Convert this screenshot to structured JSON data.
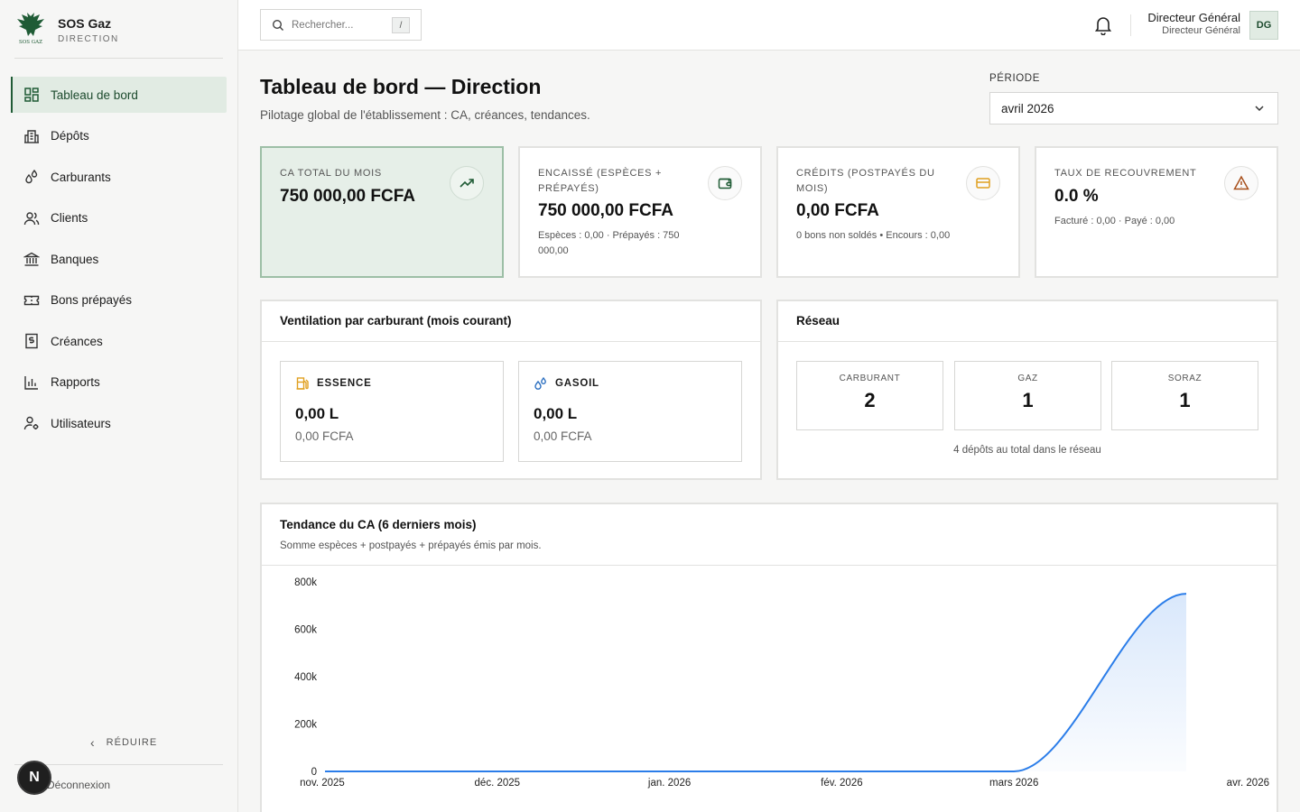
{
  "brand": {
    "name": "SOS Gaz",
    "subtitle": "DIRECTION",
    "logo_text": "SOS GAZ"
  },
  "sidebar": {
    "items": [
      {
        "label": "Tableau de bord",
        "icon": "dashboard-icon",
        "active": true
      },
      {
        "label": "Dépôts",
        "icon": "building-icon"
      },
      {
        "label": "Carburants",
        "icon": "droplets-icon"
      },
      {
        "label": "Clients",
        "icon": "users-icon"
      },
      {
        "label": "Banques",
        "icon": "bank-icon"
      },
      {
        "label": "Bons prépayés",
        "icon": "ticket-icon"
      },
      {
        "label": "Créances",
        "icon": "receipt-dollar-icon"
      },
      {
        "label": "Rapports",
        "icon": "bar-chart-icon"
      },
      {
        "label": "Utilisateurs",
        "icon": "user-cog-icon"
      }
    ],
    "reduce_label": "RÉDUIRE",
    "logout_label": "Déconnexion",
    "badge_letter": "N"
  },
  "topbar": {
    "search_placeholder": "Rechercher...",
    "search_shortcut": "/",
    "user_name": "Directeur Général",
    "user_role": "Directeur Général",
    "avatar_initials": "DG"
  },
  "page": {
    "title": "Tableau de bord — Direction",
    "subtitle": "Pilotage global de l'établissement : CA, créances, tendances."
  },
  "period": {
    "label": "PÉRIODE",
    "value": "avril 2026"
  },
  "kpis": [
    {
      "label": "CA TOTAL DU MOIS",
      "value": "750 000,00 FCFA",
      "note": "",
      "icon": "trending-up-icon",
      "color": "#1f5b35"
    },
    {
      "label": "ENCAISSÉ (ESPÈCES + PRÉPAYÉS)",
      "value": "750 000,00 FCFA",
      "note": "Espèces : 0,00 · Prépayés : 750 000,00",
      "icon": "wallet-icon",
      "color": "#1f5b35"
    },
    {
      "label": "CRÉDITS (POSTPAYÉS DU MOIS)",
      "value": "0,00 FCFA",
      "note": "0 bons non soldés • Encours : 0,00",
      "icon": "credit-card-icon",
      "color": "#e0a020"
    },
    {
      "label": "TAUX DE RECOUVREMENT",
      "value": "0.0 %",
      "note": "Facturé : 0,00 · Payé : 0,00",
      "icon": "alert-triangle-icon",
      "color": "#a8501c"
    }
  ],
  "fuel_panel": {
    "title": "Ventilation par carburant (mois courant)",
    "items": [
      {
        "name": "ESSENCE",
        "volume": "0,00 L",
        "amount": "0,00 FCFA",
        "icon": "fuel-pump-icon"
      },
      {
        "name": "GASOIL",
        "volume": "0,00 L",
        "amount": "0,00 FCFA",
        "icon": "droplets-icon"
      }
    ]
  },
  "network_panel": {
    "title": "Réseau",
    "items": [
      {
        "label": "CARBURANT",
        "value": "2"
      },
      {
        "label": "GAZ",
        "value": "1"
      },
      {
        "label": "SORAZ",
        "value": "1"
      }
    ],
    "total_text": "4 dépôts au total dans le réseau"
  },
  "trend_panel": {
    "title": "Tendance du CA (6 derniers mois)",
    "subtitle": "Somme espèces + postpayés + prépayés émis par mois."
  },
  "chart_data": {
    "type": "area",
    "categories": [
      "nov. 2025",
      "déc. 2025",
      "jan. 2026",
      "fév. 2026",
      "mars 2026",
      "avr. 2026"
    ],
    "values": [
      0,
      0,
      0,
      0,
      0,
      750000
    ],
    "y_ticks": [
      "0",
      "200k",
      "400k",
      "600k",
      "800k"
    ],
    "y_tick_values": [
      0,
      200000,
      400000,
      600000,
      800000
    ],
    "ylim": [
      0,
      800000
    ],
    "line_color": "#2b7de9",
    "grid": false,
    "legend": false
  }
}
